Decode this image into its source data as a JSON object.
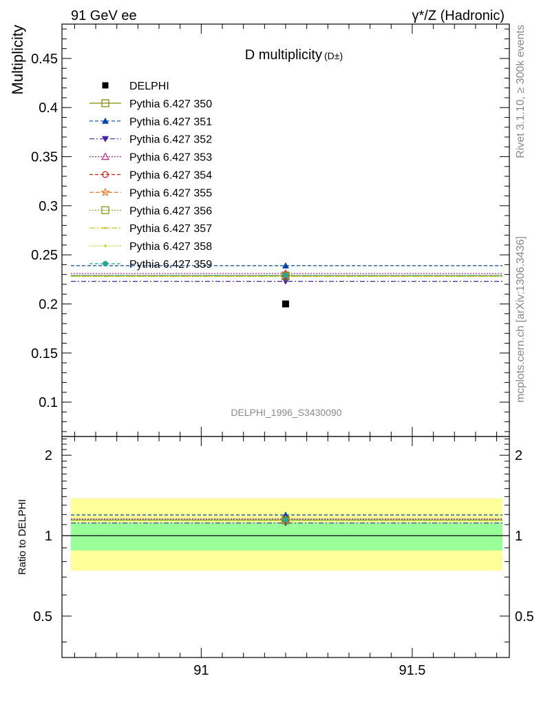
{
  "header": {
    "left": "91 GeV ee",
    "right": "γ*/Z (Hadronic)"
  },
  "side_labels": {
    "rivet": "Rivet 3.1.10, ≥ 300k events",
    "mcplots": "mcplots.cern.ch [arXiv:1306.3436]"
  },
  "colors": {
    "data": "#000000",
    "band_inner": "#99ff99",
    "band_outer": "#ffff99"
  },
  "chart_data": [
    {
      "panel": "main",
      "type": "scatter",
      "title": "D multiplicity",
      "title_sub": "(D±)",
      "analysis": "DELPHI_1996_S3430090",
      "ylabel": "Multiplicity",
      "xlabel": "",
      "xlim": [
        90.67,
        91.73
      ],
      "ylim": [
        0.065,
        0.485
      ],
      "yticks": [
        {
          "v": 0.1,
          "label": "0.1"
        },
        {
          "v": 0.15,
          "label": "0.15"
        },
        {
          "v": 0.2,
          "label": "0.2"
        },
        {
          "v": 0.25,
          "label": "0.25"
        },
        {
          "v": 0.3,
          "label": "0.3"
        },
        {
          "v": 0.35,
          "label": "0.35"
        },
        {
          "v": 0.4,
          "label": "0.4"
        },
        {
          "v": 0.45,
          "label": "0.45"
        }
      ],
      "x_major_ticks": [
        91,
        91.5
      ],
      "legend_position": "top-left",
      "data_series": {
        "name": "DELPHI",
        "x": 91.2,
        "y": 0.2,
        "marker": "square",
        "color": "#000000"
      },
      "series": [
        {
          "name": "Pythia 6.427 350",
          "value": 0.229,
          "color": "#888800",
          "dash": "",
          "marker": "square-open"
        },
        {
          "name": "Pythia 6.427 351",
          "value": 0.239,
          "color": "#0044aa",
          "dash": "5,3",
          "marker": "triangle"
        },
        {
          "name": "Pythia 6.427 352",
          "value": 0.223,
          "color": "#4422aa",
          "dash": "7,3,2,3",
          "marker": "triangle-down"
        },
        {
          "name": "Pythia 6.427 353",
          "value": 0.231,
          "color": "#bb2288",
          "dash": "2,2",
          "marker": "triangle-open"
        },
        {
          "name": "Pythia 6.427 354",
          "value": 0.229,
          "color": "#dd1111",
          "dash": "5,3",
          "marker": "circle-open"
        },
        {
          "name": "Pythia 6.427 355",
          "value": 0.229,
          "color": "#ee7722",
          "dash": "6,3",
          "marker": "star-open"
        },
        {
          "name": "Pythia 6.427 356",
          "value": 0.228,
          "color": "#889911",
          "dash": "2,2",
          "marker": "square-open"
        },
        {
          "name": "Pythia 6.427 357",
          "value": 0.228,
          "color": "#ccbb00",
          "dash": "8,3,2,3",
          "marker": "dash"
        },
        {
          "name": "Pythia 6.427 358",
          "value": 0.228,
          "color": "#bbdd11",
          "dash": "2,2",
          "marker": "dot"
        },
        {
          "name": "Pythia 6.427 359",
          "value": 0.229,
          "color": "#22aa99",
          "dash": "5,3",
          "marker": "circle"
        }
      ]
    },
    {
      "panel": "ratio",
      "type": "line",
      "ylabel": "Ratio to DELPHI",
      "xlim": [
        90.67,
        91.73
      ],
      "ylim": [
        0.35,
        2.35
      ],
      "yticks": [
        {
          "v": 0.5,
          "label": "0.5"
        },
        {
          "v": 1,
          "label": "1"
        },
        {
          "v": 2,
          "label": "2"
        }
      ],
      "xticks": [
        {
          "v": 91,
          "label": "91"
        },
        {
          "v": 91.5,
          "label": "91.5"
        }
      ],
      "band_inner": [
        0.88,
        1.12
      ],
      "band_outer": [
        0.74,
        1.38
      ],
      "series_ratio": [
        1.145,
        1.195,
        1.115,
        1.155,
        1.145,
        1.145,
        1.14,
        1.14,
        1.14,
        1.145
      ]
    }
  ]
}
